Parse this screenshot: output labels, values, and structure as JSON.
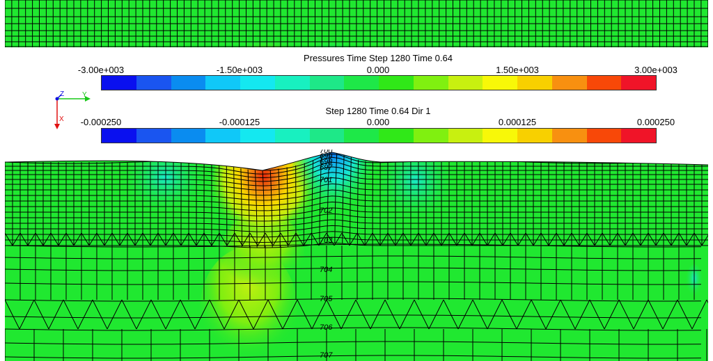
{
  "pressure_legend": {
    "title": "Pressures Time Step  1280 Time 0.64",
    "ticks": [
      "-3.00e+003",
      "-1.50e+003",
      "0.000",
      "1.50e+003",
      "3.00e+003"
    ],
    "colors": [
      "#0a10ef",
      "#1a55f0",
      "#0a8cf0",
      "#10c8f8",
      "#14e8f0",
      "#18f0c0",
      "#1ee888",
      "#1ee848",
      "#30e818",
      "#80f010",
      "#c8f010",
      "#f8f808",
      "#f8d000",
      "#f89010",
      "#f84808",
      "#f01428"
    ]
  },
  "displacement_legend": {
    "title": "Step  1280 Time 0.64 Dir 1",
    "ticks": [
      "-0.000250",
      "-0.000125",
      "0.000",
      "0.000125",
      "0.000250"
    ],
    "colors": [
      "#0a10ef",
      "#1a55f0",
      "#0a8cf0",
      "#10c8f8",
      "#14e8f0",
      "#18f0c0",
      "#1ee888",
      "#1ee848",
      "#30e818",
      "#80f010",
      "#c8f010",
      "#f8f808",
      "#f8d000",
      "#f89010",
      "#f84808",
      "#f01428"
    ]
  },
  "axes": {
    "z": "Z",
    "y": "Y",
    "x": "X"
  },
  "node_labels": [
    "700",
    "699",
    "698",
    "697",
    "701",
    "702",
    "703",
    "704",
    "705",
    "706",
    "707"
  ]
}
